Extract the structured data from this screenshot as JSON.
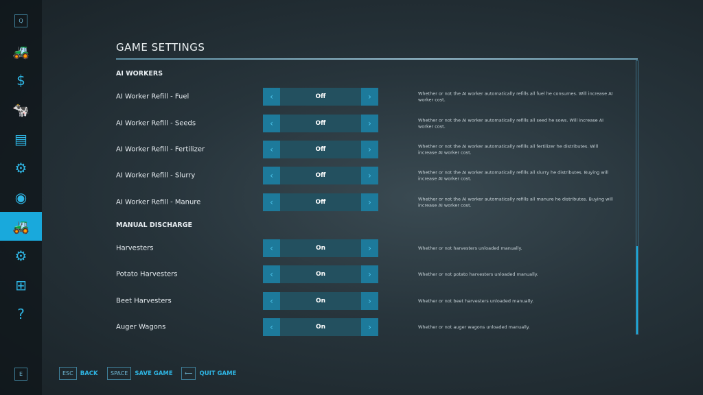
{
  "sidebar": {
    "top_key": "Q",
    "bottom_key": "E",
    "items": [
      {
        "icon": "tractor-icon",
        "glyph": "🚜"
      },
      {
        "icon": "dollar-icon",
        "glyph": "$"
      },
      {
        "icon": "cow-icon",
        "glyph": "🐄"
      },
      {
        "icon": "contracts-icon",
        "glyph": "▤"
      },
      {
        "icon": "production-icon",
        "glyph": "⚙"
      },
      {
        "icon": "presentation-icon",
        "glyph": "◉"
      },
      {
        "icon": "vehicle-settings-icon",
        "glyph": "🚜",
        "active": true
      },
      {
        "icon": "gear-icon",
        "glyph": "⚙"
      },
      {
        "icon": "hierarchy-icon",
        "glyph": "⊞"
      },
      {
        "icon": "help-book-icon",
        "glyph": "?"
      }
    ]
  },
  "header": {
    "title": "GAME SETTINGS"
  },
  "sections": [
    {
      "title": "AI WORKERS",
      "settings": [
        {
          "label": "AI Worker Refill - Fuel",
          "value": "Off",
          "description": "Whether or not the AI worker automatically refills all fuel he consumes. Will increase AI worker cost."
        },
        {
          "label": "AI Worker Refill - Seeds",
          "value": "Off",
          "description": "Whether or not the AI worker automatically refills all seed he sows. Will increase AI worker cost."
        },
        {
          "label": "AI Worker Refill - Fertilizer",
          "value": "Off",
          "description": "Whether or not the AI worker automatically refills all fertilizer he distributes. Will increase AI worker cost."
        },
        {
          "label": "AI Worker Refill - Slurry",
          "value": "Off",
          "description": "Whether or not the AI worker automatically refills all slurry he distributes. Buying will increase AI worker cost."
        },
        {
          "label": "AI Worker Refill - Manure",
          "value": "Off",
          "description": "Whether or not the AI worker automatically refills all manure he distributes. Buying will increase AI worker cost."
        }
      ]
    },
    {
      "title": "MANUAL DISCHARGE",
      "settings": [
        {
          "label": "Harvesters",
          "value": "On",
          "description": "Whether or not harvesters unloaded manually."
        },
        {
          "label": "Potato Harvesters",
          "value": "On",
          "description": "Whether or not potato harvesters unloaded manually."
        },
        {
          "label": "Beet Harvesters",
          "value": "On",
          "description": "Whether or not beet harvesters unloaded manually."
        },
        {
          "label": "Auger Wagons",
          "value": "On",
          "description": "Whether or not auger wagons unloaded manually."
        }
      ]
    }
  ],
  "footer": [
    {
      "key": "ESC",
      "label": "BACK"
    },
    {
      "key": "SPACE",
      "label": "SAVE GAME"
    },
    {
      "key": "⟵",
      "label": "QUIT GAME"
    }
  ],
  "colors": {
    "accent": "#19a9dc",
    "control_bg": "#23505f",
    "arrow_bg": "#1d7a9b"
  }
}
